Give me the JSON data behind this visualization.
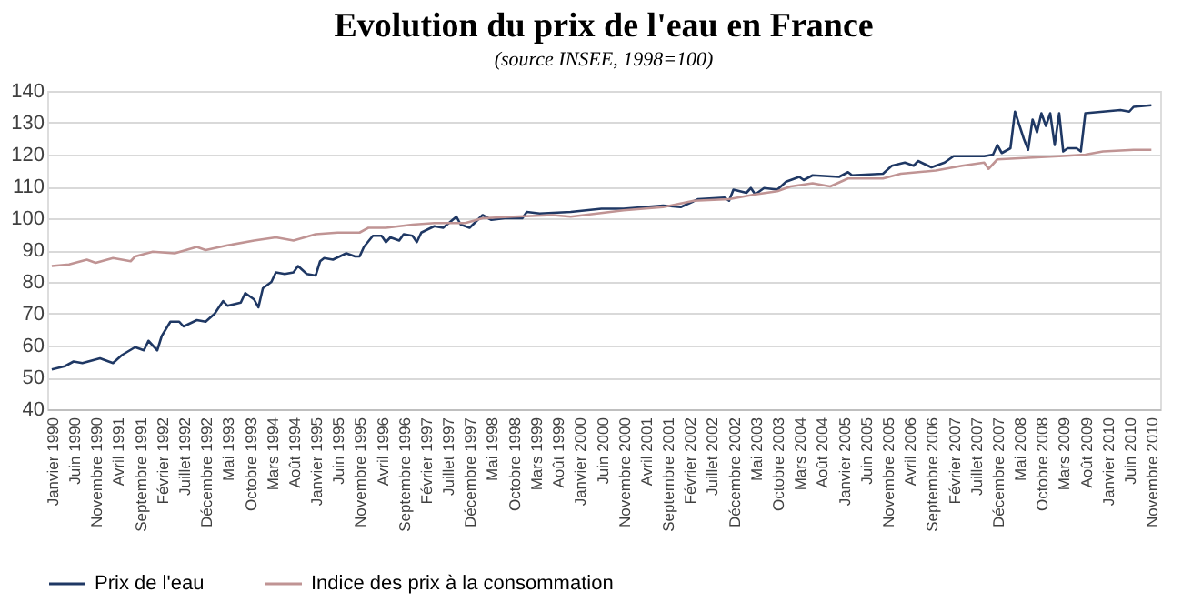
{
  "chart_data": {
    "type": "line",
    "title": "Evolution du prix de l'eau en France",
    "subtitle": "(source INSEE, 1998=100)",
    "xlim": [
      "1989-12",
      "2011-01"
    ],
    "ylim": [
      40,
      140
    ],
    "yticks": [
      40,
      50,
      60,
      70,
      80,
      90,
      100,
      110,
      120,
      130,
      140
    ],
    "grid": "y",
    "legend": "bottom",
    "marker": "none",
    "line_style": "solid",
    "xticks": [
      {
        "value": "1990-01",
        "label": "Janvier 1990"
      },
      {
        "value": "1990-06",
        "label": "Juin 1990"
      },
      {
        "value": "1990-11",
        "label": "Novembre 1990"
      },
      {
        "value": "1991-04",
        "label": "Avril 1991"
      },
      {
        "value": "1991-09",
        "label": "Septembre 1991"
      },
      {
        "value": "1992-02",
        "label": "Février 1992"
      },
      {
        "value": "1992-07",
        "label": "Juillet 1992"
      },
      {
        "value": "1992-12",
        "label": "Décembre 1992"
      },
      {
        "value": "1993-05",
        "label": "Mai 1993"
      },
      {
        "value": "1993-10",
        "label": "Octobre 1993"
      },
      {
        "value": "1994-03",
        "label": "Mars 1994"
      },
      {
        "value": "1994-08",
        "label": "Août 1994"
      },
      {
        "value": "1995-01",
        "label": "Janvier 1995"
      },
      {
        "value": "1995-06",
        "label": "Juin 1995"
      },
      {
        "value": "1995-11",
        "label": "Novembre 1995"
      },
      {
        "value": "1996-04",
        "label": "Avril 1996"
      },
      {
        "value": "1996-09",
        "label": "Septembre 1996"
      },
      {
        "value": "1997-02",
        "label": "Février 1997"
      },
      {
        "value": "1997-07",
        "label": "Juillet 1997"
      },
      {
        "value": "1997-12",
        "label": "Décembre 1997"
      },
      {
        "value": "1998-05",
        "label": "Mai 1998"
      },
      {
        "value": "1998-10",
        "label": "Octobre 1998"
      },
      {
        "value": "1999-03",
        "label": "Mars 1999"
      },
      {
        "value": "1999-08",
        "label": "Août 1999"
      },
      {
        "value": "2000-01",
        "label": "Janvier 2000"
      },
      {
        "value": "2000-06",
        "label": "Juin 2000"
      },
      {
        "value": "2000-11",
        "label": "Novembre 2000"
      },
      {
        "value": "2001-04",
        "label": "Avril 2001"
      },
      {
        "value": "2001-09",
        "label": "Septembre 2001"
      },
      {
        "value": "2002-02",
        "label": "Février 2002"
      },
      {
        "value": "2002-07",
        "label": "Juillet 2002"
      },
      {
        "value": "2002-12",
        "label": "Décembre 2002"
      },
      {
        "value": "2003-05",
        "label": "Mai 2003"
      },
      {
        "value": "2003-10",
        "label": "Octobre 2003"
      },
      {
        "value": "2004-03",
        "label": "Mars 2004"
      },
      {
        "value": "2004-08",
        "label": "Août 2004"
      },
      {
        "value": "2005-01",
        "label": "Janvier 2005"
      },
      {
        "value": "2005-06",
        "label": "Juin 2005"
      },
      {
        "value": "2005-11",
        "label": "Novembre 2005"
      },
      {
        "value": "2006-04",
        "label": "Avril 2006"
      },
      {
        "value": "2006-09",
        "label": "Septembre 2006"
      },
      {
        "value": "2007-02",
        "label": "Février 2007"
      },
      {
        "value": "2007-07",
        "label": "Juillet 2007"
      },
      {
        "value": "2007-12",
        "label": "Décembre 2007"
      },
      {
        "value": "2008-05",
        "label": "Mai 2008"
      },
      {
        "value": "2008-10",
        "label": "Octobre 2008"
      },
      {
        "value": "2009-03",
        "label": "Mars 2009"
      },
      {
        "value": "2009-08",
        "label": "Août 2009"
      },
      {
        "value": "2010-01",
        "label": "Janvier 2010"
      },
      {
        "value": "2010-06",
        "label": "Juin 2010"
      },
      {
        "value": "2010-11",
        "label": "Novembre 2010"
      }
    ],
    "series": [
      {
        "name": "Prix de l'eau",
        "color": "#1f3864",
        "x": [
          "1990-01",
          "1990-04",
          "1990-06",
          "1990-08",
          "1990-12",
          "1991-03",
          "1991-05",
          "1991-08",
          "1991-10",
          "1991-11",
          "1992-01",
          "1992-02",
          "1992-04",
          "1992-06",
          "1992-07",
          "1992-10",
          "1992-12",
          "1993-02",
          "1993-04",
          "1993-05",
          "1993-08",
          "1993-09",
          "1993-11",
          "1993-12",
          "1994-01",
          "1994-03",
          "1994-04",
          "1994-06",
          "1994-08",
          "1994-09",
          "1994-11",
          "1995-01",
          "1995-02",
          "1995-03",
          "1995-05",
          "1995-08",
          "1995-10",
          "1995-11",
          "1995-12",
          "1996-02",
          "1996-04",
          "1996-05",
          "1996-06",
          "1996-08",
          "1996-09",
          "1996-11",
          "1996-12",
          "1997-01",
          "1997-04",
          "1997-06",
          "1997-09",
          "1997-10",
          "1997-12",
          "1998-03",
          "1998-05",
          "1998-08",
          "1998-12",
          "1999-01",
          "1999-04",
          "1999-11",
          "2000-06",
          "2000-11",
          "2001-08",
          "2001-12",
          "2002-04",
          "2002-10",
          "2002-11",
          "2002-12",
          "2003-03",
          "2003-04",
          "2003-05",
          "2003-07",
          "2003-10",
          "2003-12",
          "2004-03",
          "2004-04",
          "2004-06",
          "2004-12",
          "2005-02",
          "2005-03",
          "2005-10",
          "2005-12",
          "2006-03",
          "2006-05",
          "2006-06",
          "2006-09",
          "2006-12",
          "2007-02",
          "2007-09",
          "2007-11",
          "2007-12",
          "2008-01",
          "2008-03",
          "2008-04",
          "2008-06",
          "2008-07",
          "2008-08",
          "2008-09",
          "2008-10",
          "2008-11",
          "2008-12",
          "2009-01",
          "2009-02",
          "2009-03",
          "2009-04",
          "2009-06",
          "2009-07",
          "2009-08",
          "2009-12",
          "2010-04",
          "2010-06",
          "2010-07",
          "2010-11"
        ],
        "values": [
          52.5,
          53.5,
          55,
          54.5,
          56,
          54.5,
          57,
          59.5,
          58.5,
          61.5,
          58.5,
          63,
          67.5,
          67.5,
          66,
          68,
          67.5,
          70,
          74,
          72.5,
          73.5,
          76.5,
          74.5,
          72,
          78,
          80,
          83,
          82.5,
          83,
          85,
          82.5,
          82,
          86.5,
          87.5,
          87,
          89,
          88,
          88,
          91,
          94.5,
          94.5,
          92.5,
          94,
          93,
          95,
          94.5,
          92.5,
          95.5,
          97.5,
          97,
          100.5,
          98,
          97,
          101,
          99.5,
          100,
          100,
          102,
          101.5,
          102,
          103,
          103,
          104,
          103.5,
          106,
          106.5,
          105.5,
          109,
          108,
          109.5,
          107.5,
          109.5,
          109,
          111.5,
          113,
          112,
          113.5,
          113,
          114.5,
          113.5,
          114,
          116.5,
          117.5,
          116.5,
          118,
          116,
          117.5,
          119.5,
          119.5,
          120,
          123,
          120.5,
          122,
          133.5,
          125,
          121.5,
          131,
          127,
          133,
          129,
          133,
          123,
          133,
          121,
          122,
          122,
          121,
          133,
          133.5,
          134,
          133.5,
          135,
          135.5
        ]
      },
      {
        "name": "Indice des prix à la consommation",
        "color": "#c09494",
        "x": [
          "1990-01",
          "1990-05",
          "1990-09",
          "1990-11",
          "1991-03",
          "1991-07",
          "1991-08",
          "1991-12",
          "1992-05",
          "1992-10",
          "1992-12",
          "1993-05",
          "1993-11",
          "1994-04",
          "1994-08",
          "1995-01",
          "1995-06",
          "1995-11",
          "1996-01",
          "1996-05",
          "1996-11",
          "1997-04",
          "1997-11",
          "1998-03",
          "1998-10",
          "1999-07",
          "1999-11",
          "2000-11",
          "2001-08",
          "2002-03",
          "2002-11",
          "2003-05",
          "2003-10",
          "2004-01",
          "2004-06",
          "2004-10",
          "2005-02",
          "2005-10",
          "2006-02",
          "2006-10",
          "2007-04",
          "2007-09",
          "2007-10",
          "2007-12",
          "2008-07",
          "2009-02",
          "2009-08",
          "2009-12",
          "2010-07",
          "2010-11"
        ],
        "values": [
          85,
          85.5,
          87,
          86,
          87.5,
          86.5,
          88,
          89.5,
          89,
          91,
          90,
          91.5,
          93,
          94,
          93,
          95,
          95.5,
          95.5,
          97,
          97,
          98,
          98.5,
          98.5,
          100,
          100.5,
          101,
          100.5,
          102.5,
          103.5,
          105.5,
          106,
          107.5,
          108.5,
          110,
          111,
          110,
          112.5,
          112.5,
          114,
          115,
          116.5,
          117.5,
          115.5,
          118.5,
          119,
          119.5,
          120,
          121,
          121.5,
          121.5
        ]
      }
    ]
  }
}
